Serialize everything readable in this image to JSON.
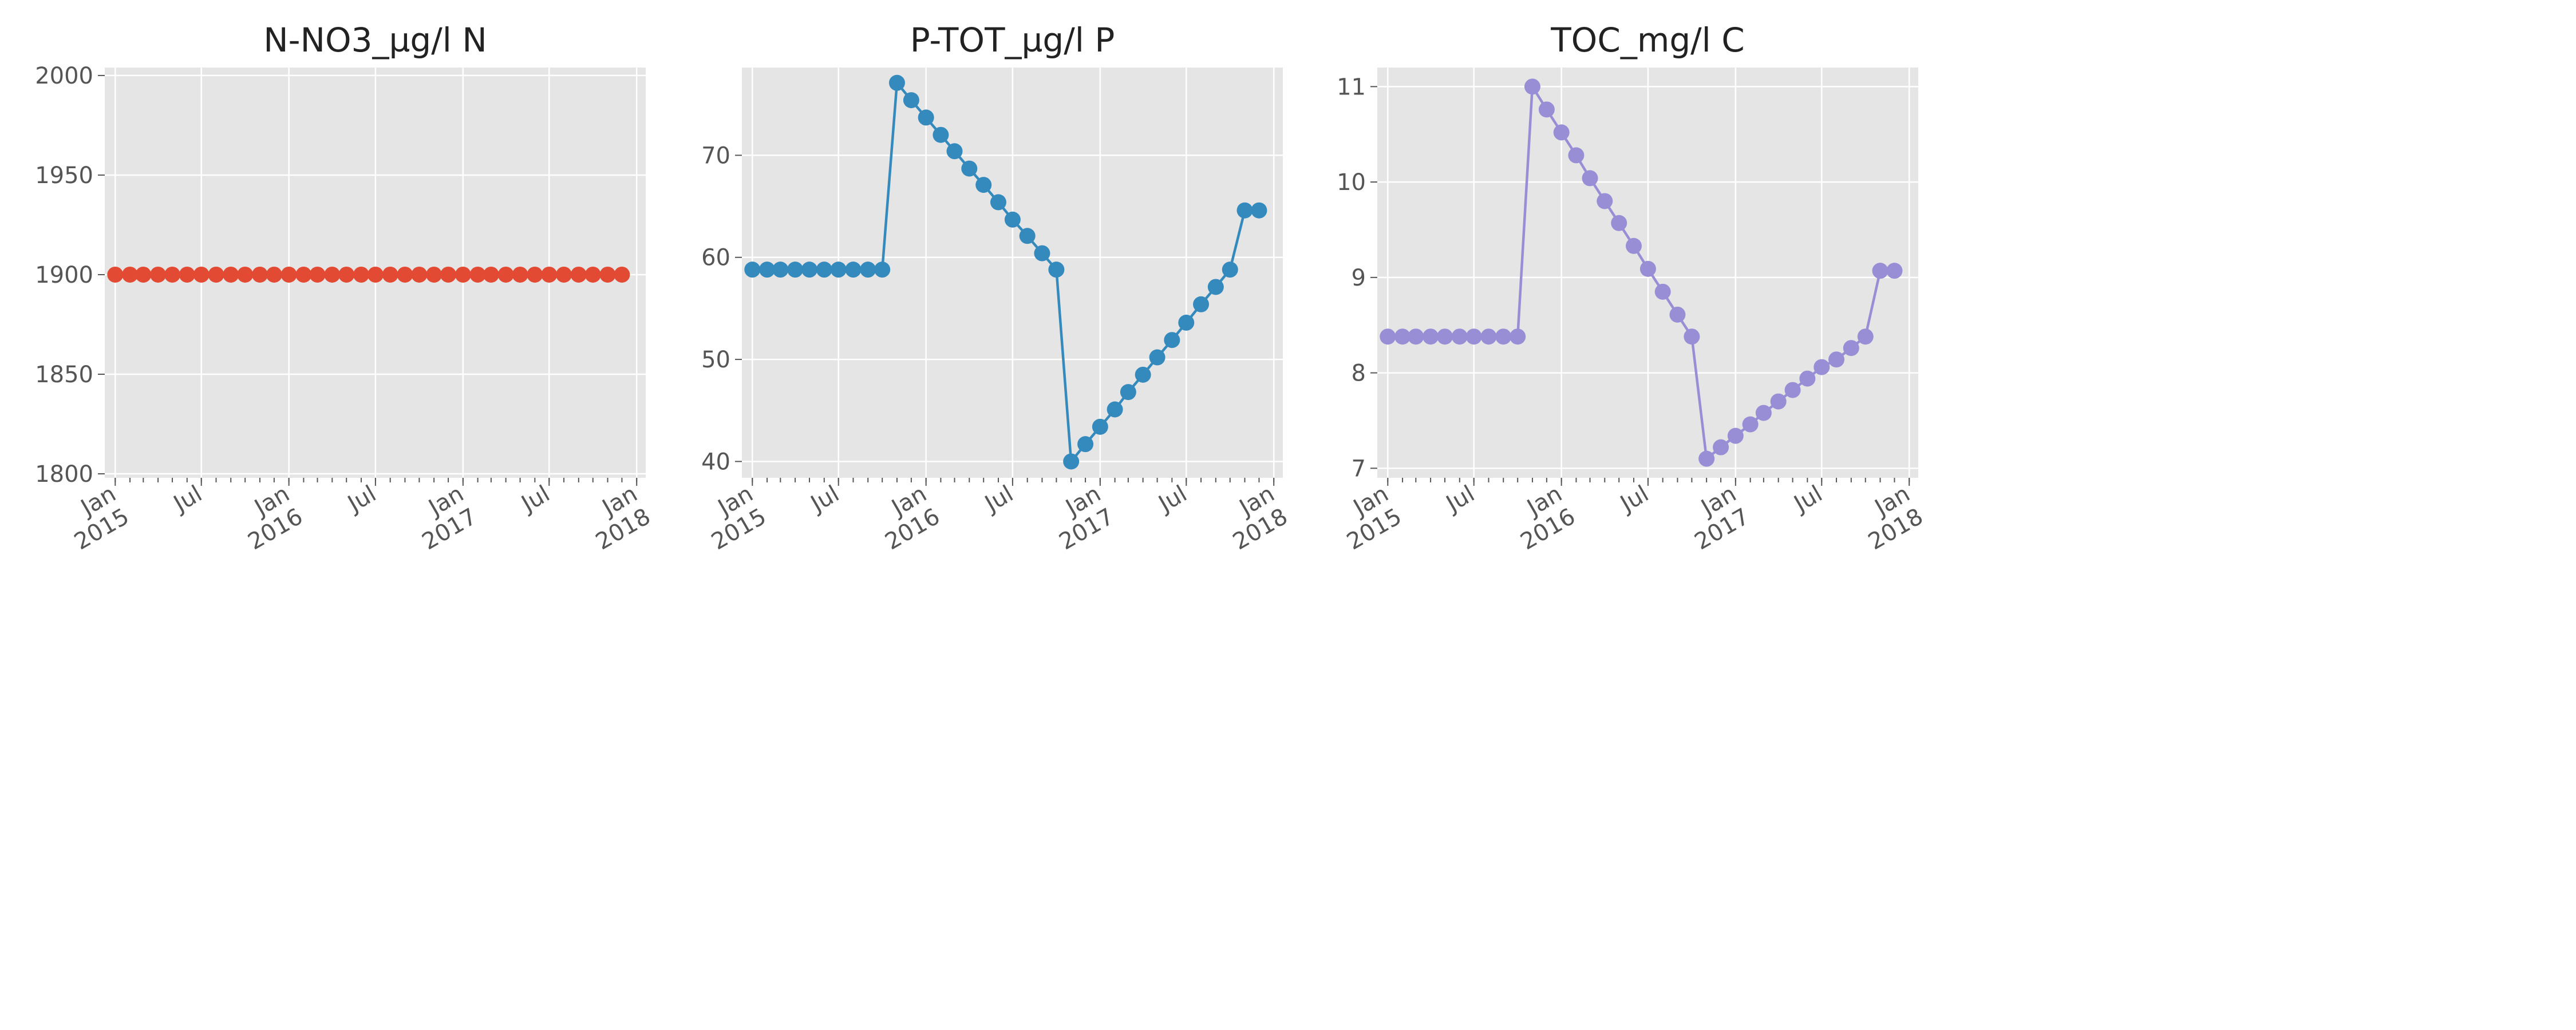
{
  "chart_data": [
    {
      "type": "line",
      "title": "N-NO3_µg/l N",
      "xlabel": "",
      "ylabel": "",
      "color": "#E24A33",
      "x_tick_labels": [
        "Jan\n2015",
        "Jul",
        "Jan\n2016",
        "Jul",
        "Jan\n2017",
        "Jul",
        "Jan\n2018"
      ],
      "x_ticks": [
        "2015-01-01",
        "2015-07-01",
        "2016-01-01",
        "2016-07-01",
        "2017-01-01",
        "2017-07-01",
        "2018-01-01"
      ],
      "y_ticks": [
        1800,
        1850,
        1900,
        1950,
        2000
      ],
      "ylim": [
        1798,
        2004
      ],
      "xlim": [
        "2014-12-10",
        "2018-01-20"
      ],
      "grid": true,
      "x": [
        "2015-01-01",
        "2015-02-01",
        "2015-03-01",
        "2015-04-01",
        "2015-05-01",
        "2015-06-01",
        "2015-07-01",
        "2015-08-01",
        "2015-09-01",
        "2015-10-01",
        "2015-11-01",
        "2015-12-01",
        "2016-01-01",
        "2016-02-01",
        "2016-03-01",
        "2016-04-01",
        "2016-05-01",
        "2016-06-01",
        "2016-07-01",
        "2016-08-01",
        "2016-09-01",
        "2016-10-01",
        "2016-11-01",
        "2016-12-01",
        "2017-01-01",
        "2017-02-01",
        "2017-03-01",
        "2017-04-01",
        "2017-05-01",
        "2017-06-01",
        "2017-07-01",
        "2017-08-01",
        "2017-09-01",
        "2017-10-01",
        "2017-11-01",
        "2017-12-01"
      ],
      "y": [
        1900,
        1900,
        1900,
        1900,
        1900,
        1900,
        1900,
        1900,
        1900,
        1900,
        1900,
        1900,
        1900,
        1900,
        1900,
        1900,
        1900,
        1900,
        1900,
        1900,
        1900,
        1900,
        1900,
        1900,
        1900,
        1900,
        1900,
        1900,
        1900,
        1900,
        1900,
        1900,
        1900,
        1900,
        1900,
        1900
      ]
    },
    {
      "type": "line",
      "title": "P-TOT_µg/l P",
      "xlabel": "",
      "ylabel": "",
      "color": "#348ABD",
      "x_tick_labels": [
        "Jan\n2015",
        "Jul",
        "Jan\n2016",
        "Jul",
        "Jan\n2017",
        "Jul",
        "Jan\n2018"
      ],
      "x_ticks": [
        "2015-01-01",
        "2015-07-01",
        "2016-01-01",
        "2016-07-01",
        "2017-01-01",
        "2017-07-01",
        "2018-01-01"
      ],
      "y_ticks": [
        40,
        50,
        60,
        70
      ],
      "ylim": [
        38.4,
        78.6
      ],
      "xlim": [
        "2014-12-10",
        "2018-01-20"
      ],
      "grid": true,
      "x": [
        "2015-01-01",
        "2015-02-01",
        "2015-03-01",
        "2015-04-01",
        "2015-05-01",
        "2015-06-01",
        "2015-07-01",
        "2015-08-01",
        "2015-09-01",
        "2015-10-01",
        "2015-11-01",
        "2015-12-01",
        "2016-01-01",
        "2016-02-01",
        "2016-03-01",
        "2016-04-01",
        "2016-05-01",
        "2016-06-01",
        "2016-07-01",
        "2016-08-01",
        "2016-09-01",
        "2016-10-01",
        "2016-11-01",
        "2016-12-01",
        "2017-01-01",
        "2017-02-01",
        "2017-03-01",
        "2017-04-01",
        "2017-05-01",
        "2017-06-01",
        "2017-07-01",
        "2017-08-01",
        "2017-09-01",
        "2017-10-01",
        "2017-11-01",
        "2017-12-01"
      ],
      "y": [
        58.8,
        58.8,
        58.8,
        58.8,
        58.8,
        58.8,
        58.8,
        58.8,
        58.8,
        58.8,
        77.1,
        75.4,
        73.7,
        72.0,
        70.4,
        68.7,
        67.1,
        65.4,
        63.7,
        62.1,
        60.4,
        58.8,
        40.0,
        41.7,
        43.4,
        45.1,
        46.8,
        48.5,
        50.2,
        51.9,
        53.6,
        55.4,
        57.1,
        58.8,
        64.6,
        64.6
      ]
    },
    {
      "type": "line",
      "title": "TOC_mg/l C",
      "xlabel": "",
      "ylabel": "",
      "color": "#988ED5",
      "x_tick_labels": [
        "Jan\n2015",
        "Jul",
        "Jan\n2016",
        "Jul",
        "Jan\n2017",
        "Jul",
        "Jan\n2018"
      ],
      "x_ticks": [
        "2015-01-01",
        "2015-07-01",
        "2016-01-01",
        "2016-07-01",
        "2017-01-01",
        "2017-07-01",
        "2018-01-01"
      ],
      "y_ticks": [
        7,
        8,
        9,
        10,
        11
      ],
      "ylim": [
        6.9,
        11.2
      ],
      "xlim": [
        "2014-12-10",
        "2018-01-20"
      ],
      "grid": true,
      "x": [
        "2015-01-01",
        "2015-02-01",
        "2015-03-01",
        "2015-04-01",
        "2015-05-01",
        "2015-06-01",
        "2015-07-01",
        "2015-08-01",
        "2015-09-01",
        "2015-10-01",
        "2015-11-01",
        "2015-12-01",
        "2016-01-01",
        "2016-02-01",
        "2016-03-01",
        "2016-04-01",
        "2016-05-01",
        "2016-06-01",
        "2016-07-01",
        "2016-08-01",
        "2016-09-01",
        "2016-10-01",
        "2016-11-01",
        "2016-12-01",
        "2017-01-01",
        "2017-02-01",
        "2017-03-01",
        "2017-04-01",
        "2017-05-01",
        "2017-06-01",
        "2017-07-01",
        "2017-08-01",
        "2017-09-01",
        "2017-10-01",
        "2017-11-01",
        "2017-12-01"
      ],
      "y": [
        8.38,
        8.38,
        8.38,
        8.38,
        8.38,
        8.38,
        8.38,
        8.38,
        8.38,
        8.38,
        11.0,
        10.76,
        10.52,
        10.28,
        10.04,
        9.8,
        9.57,
        9.33,
        9.09,
        8.85,
        8.61,
        8.38,
        7.1,
        7.22,
        7.34,
        7.46,
        7.58,
        7.7,
        7.82,
        7.94,
        8.06,
        8.14,
        8.26,
        8.38,
        9.07,
        9.07
      ]
    }
  ]
}
